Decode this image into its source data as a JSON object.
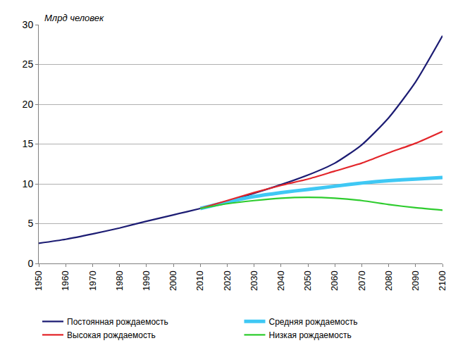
{
  "chart_data": {
    "type": "line",
    "ylabel": "Млрд человек",
    "x": [
      1950,
      1960,
      1970,
      1980,
      1990,
      2000,
      2010,
      2020,
      2030,
      2040,
      2050,
      2060,
      2070,
      2080,
      2090,
      2100
    ],
    "series": [
      {
        "name": "Постоянная рождаемость",
        "color": "#1c1c73",
        "values": [
          2.53,
          3.03,
          3.7,
          4.45,
          5.3,
          6.1,
          6.9,
          7.8,
          8.8,
          9.9,
          11.1,
          12.6,
          14.9,
          18.3,
          22.8,
          28.6
        ]
      },
      {
        "name": "Средняя рождаемость",
        "color": "#3fc8f4",
        "values": [
          null,
          null,
          null,
          null,
          null,
          null,
          6.9,
          7.7,
          8.4,
          8.9,
          9.3,
          9.7,
          10.1,
          10.4,
          10.6,
          10.8
        ]
      },
      {
        "name": "Высокая рождаемость",
        "color": "#e3262b",
        "values": [
          null,
          null,
          null,
          null,
          null,
          null,
          6.9,
          7.9,
          8.9,
          9.8,
          10.6,
          11.6,
          12.6,
          13.9,
          15.1,
          16.6
        ]
      },
      {
        "name": "Низкая рождаемость",
        "color": "#2ecc2e",
        "values": [
          null,
          null,
          null,
          null,
          null,
          null,
          6.9,
          7.5,
          7.9,
          8.2,
          8.3,
          8.2,
          7.9,
          7.4,
          7.0,
          6.7
        ]
      }
    ],
    "xlim": [
      1950,
      2100
    ],
    "xticks": [
      1950,
      1960,
      1970,
      1980,
      1990,
      2000,
      2010,
      2020,
      2030,
      2040,
      2050,
      2060,
      2070,
      2080,
      2090,
      2100
    ],
    "ylim": [
      0,
      30
    ],
    "yticks": [
      0,
      5,
      10,
      15,
      20,
      25,
      30
    ],
    "grid": true,
    "legend": "bottom"
  }
}
